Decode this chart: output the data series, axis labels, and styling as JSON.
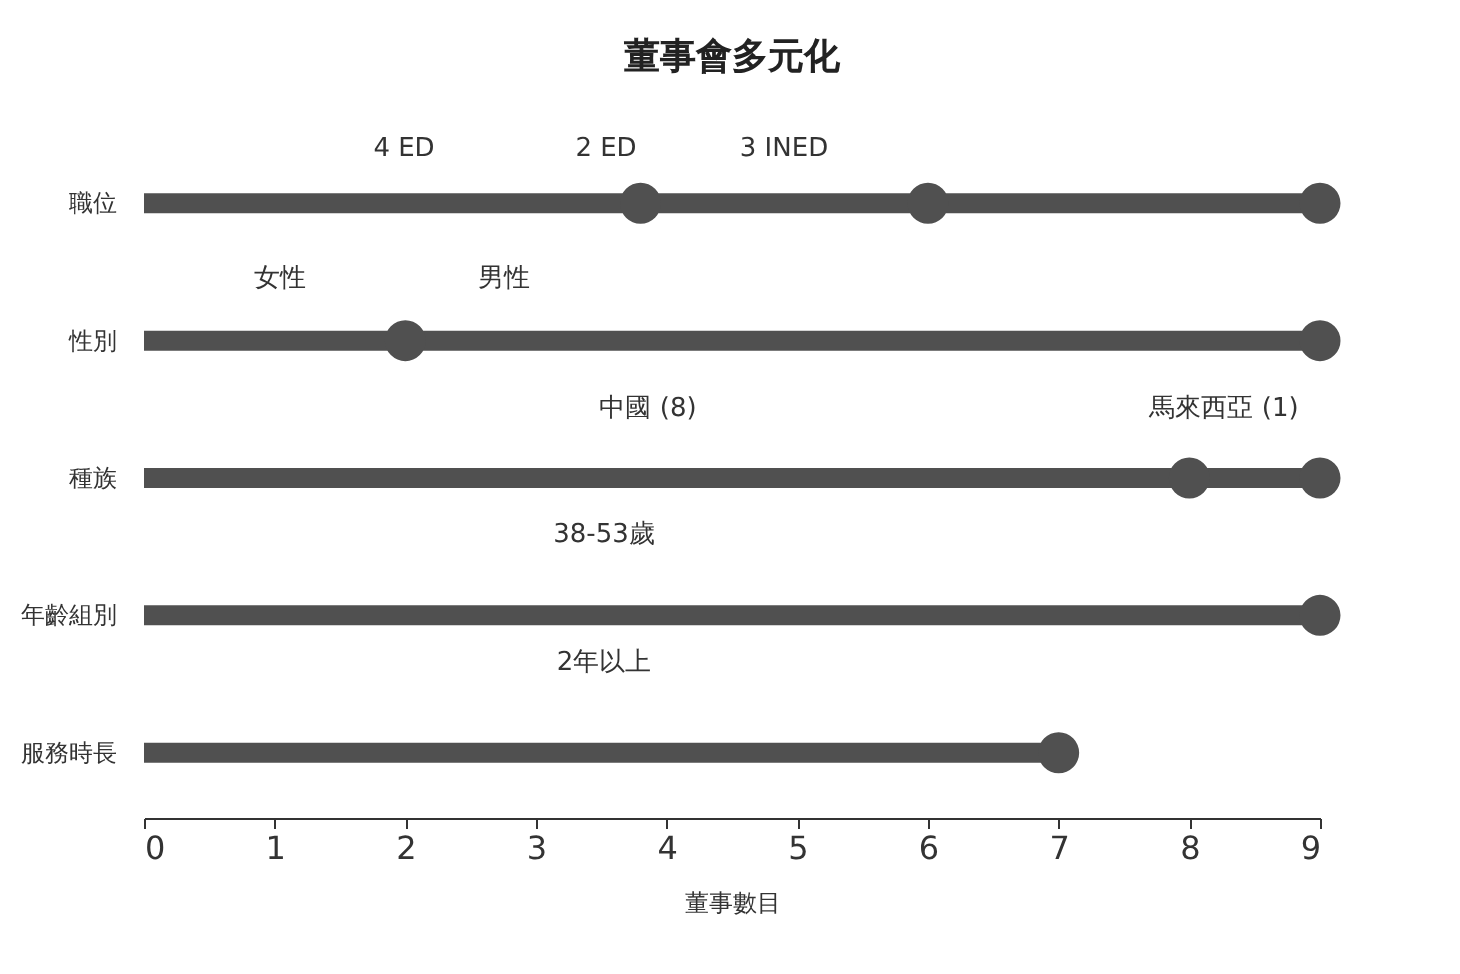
{
  "chart_data": {
    "type": "lollipop",
    "orientation": "horizontal",
    "marker": "circle",
    "title": "董事會多元化",
    "xlabel": "董事數目",
    "categories": [
      "職位",
      "性別",
      "種族",
      "年齡組別",
      "服務時長"
    ],
    "series": [
      {
        "color": "#505050",
        "values": [
          9,
          9,
          9,
          9,
          7
        ]
      },
      {
        "type": "scatter",
        "color": "#505050",
        "values": [
          3.8,
          2,
          8,
          null,
          null
        ]
      },
      {
        "type": "scatter",
        "color": "#505050",
        "values": [
          6,
          null,
          null,
          null,
          null
        ]
      }
    ],
    "xlim": [
      0,
      9
    ],
    "xticks": [
      0,
      1,
      2,
      3,
      4,
      5,
      6,
      7,
      8,
      9
    ],
    "grid": false,
    "annotations": [
      "4 ED",
      "2 ED",
      "3 INED",
      "女性",
      "男性",
      "中國 (8)",
      "馬來西亞 (1)",
      "38-53歲",
      "2年以上"
    ]
  }
}
